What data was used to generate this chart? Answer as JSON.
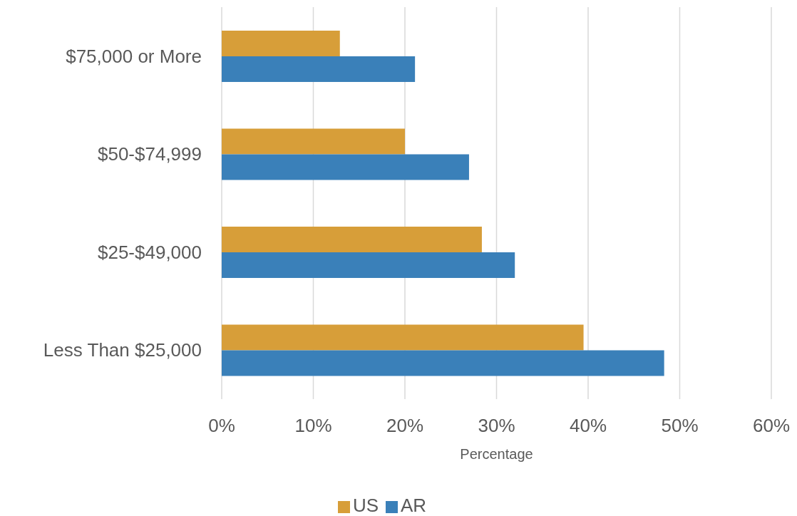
{
  "chart_data": {
    "type": "bar",
    "orientation": "horizontal",
    "categories": [
      "$75,000 or More",
      "$50-$74,999",
      "$25-$49,000",
      "Less Than $25,000"
    ],
    "series": [
      {
        "name": "US",
        "color": "#d79e39",
        "values": [
          12.9,
          20.0,
          28.4,
          39.5
        ]
      },
      {
        "name": "AR",
        "color": "#3a80b9",
        "values": [
          21.1,
          27.0,
          32.0,
          48.3
        ]
      }
    ],
    "xlabel": "Percentage",
    "xlim": [
      0,
      60
    ],
    "xticks": [
      {
        "value": 0,
        "label": "0%"
      },
      {
        "value": 10,
        "label": "10%"
      },
      {
        "value": 20,
        "label": "20%"
      },
      {
        "value": 30,
        "label": "30%"
      },
      {
        "value": 40,
        "label": "40%"
      },
      {
        "value": 50,
        "label": "50%"
      },
      {
        "value": 60,
        "label": "60%"
      }
    ],
    "grid": "x",
    "legend": "bottom"
  }
}
